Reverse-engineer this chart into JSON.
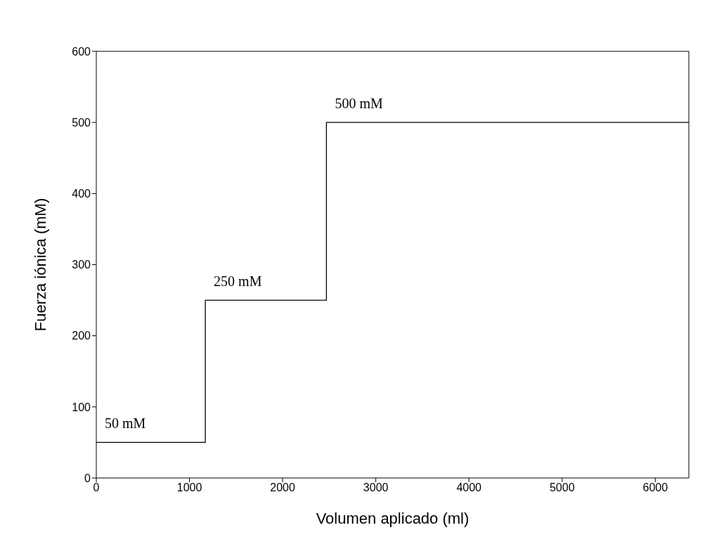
{
  "chart_data": {
    "type": "step",
    "xlabel": "Volumen aplicado (ml)",
    "ylabel": "Fuerza iónica (mM)",
    "x": [
      0,
      1170,
      2470,
      6360
    ],
    "series": [
      {
        "color": "#000000",
        "values": [
          50,
          250,
          500,
          500
        ]
      }
    ],
    "xlim": [
      0,
      6360
    ],
    "xticks": [
      0,
      1000,
      2000,
      3000,
      4000,
      5000,
      6000
    ],
    "ylim": [
      0,
      600
    ],
    "yticks": [
      0,
      100,
      200,
      300,
      400,
      500,
      600
    ],
    "grid": false,
    "legend": false,
    "marker": "none",
    "line_style": "solid",
    "annotations": [
      {
        "text": "50 mM",
        "x": 0,
        "y": 50
      },
      {
        "text": "250 mM",
        "x": 1170,
        "y": 250
      },
      {
        "text": "500 mM",
        "x": 2470,
        "y": 500
      }
    ]
  }
}
